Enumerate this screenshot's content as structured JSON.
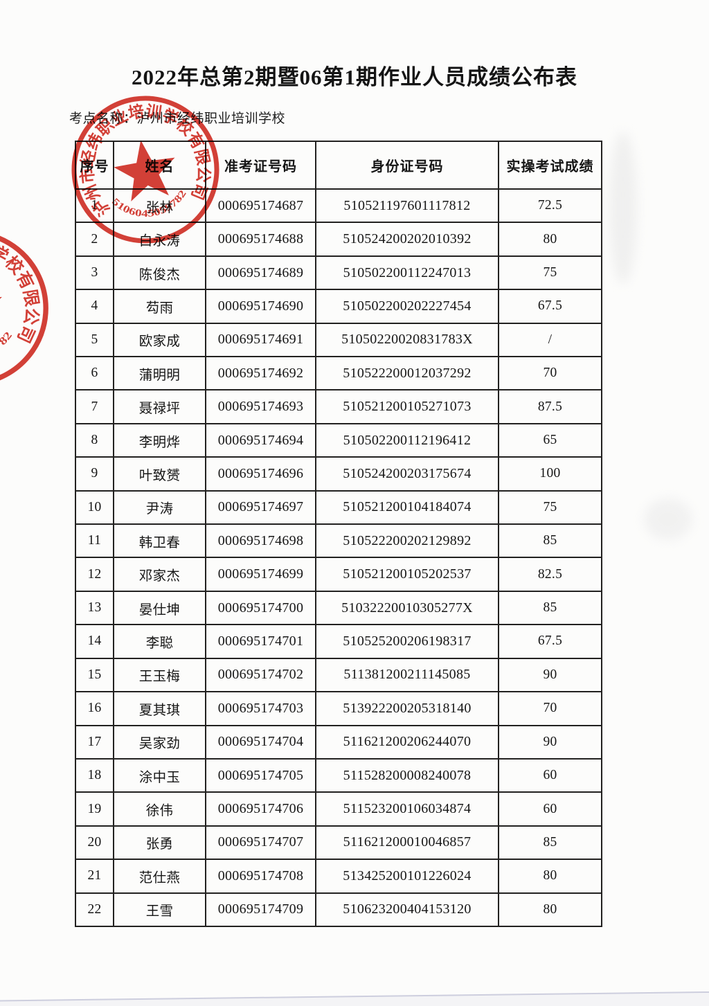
{
  "page": {
    "title": "2022年总第2期暨06第1期作业人员成绩公布表",
    "site_line": "考点名称：泸州市经纬职业培训学校"
  },
  "table": {
    "headers": [
      "序号",
      "姓名",
      "准考证号码",
      "身份证号码",
      "实操考试成绩"
    ],
    "rows": [
      [
        "1",
        "张林",
        "000695174687",
        "510521197601117812",
        "72.5"
      ],
      [
        "2",
        "白永涛",
        "000695174688",
        "510524200202010392",
        "80"
      ],
      [
        "3",
        "陈俊杰",
        "000695174689",
        "510502200112247013",
        "75"
      ],
      [
        "4",
        "芶雨",
        "000695174690",
        "510502200202227454",
        "67.5"
      ],
      [
        "5",
        "欧家成",
        "000695174691",
        "51050220020831783X",
        "/"
      ],
      [
        "6",
        "蒲明明",
        "000695174692",
        "510522200012037292",
        "70"
      ],
      [
        "7",
        "聂禄坪",
        "000695174693",
        "510521200105271073",
        "87.5"
      ],
      [
        "8",
        "李明烨",
        "000695174694",
        "510502200112196412",
        "65"
      ],
      [
        "9",
        "叶致赟",
        "000695174696",
        "510524200203175674",
        "100"
      ],
      [
        "10",
        "尹涛",
        "000695174697",
        "510521200104184074",
        "75"
      ],
      [
        "11",
        "韩卫春",
        "000695174698",
        "510522200202129892",
        "85"
      ],
      [
        "12",
        "邓家杰",
        "000695174699",
        "510521200105202537",
        "82.5"
      ],
      [
        "13",
        "晏仕坤",
        "000695174700",
        "51032220010305277X",
        "85"
      ],
      [
        "14",
        "李聪",
        "000695174701",
        "510525200206198317",
        "67.5"
      ],
      [
        "15",
        "王玉梅",
        "000695174702",
        "511381200211145085",
        "90"
      ],
      [
        "16",
        "夏其琪",
        "000695174703",
        "513922200205318140",
        "70"
      ],
      [
        "17",
        "吴家劲",
        "000695174704",
        "511621200206244070",
        "90"
      ],
      [
        "18",
        "涂中玉",
        "000695174705",
        "511528200008240078",
        "60"
      ],
      [
        "19",
        "徐伟",
        "000695174706",
        "511523200106034874",
        "60"
      ],
      [
        "20",
        "张勇",
        "000695174707",
        "511621200010046857",
        "85"
      ],
      [
        "21",
        "范仕燕",
        "000695174708",
        "513425200101226024",
        "80"
      ],
      [
        "22",
        "王雪",
        "000695174709",
        "510623200404153120",
        "80"
      ]
    ]
  },
  "stamp": {
    "company_text": "泸州市经纬职业培训学校有限公司",
    "serial_number": "5106045059782",
    "color": "#d0261c"
  }
}
